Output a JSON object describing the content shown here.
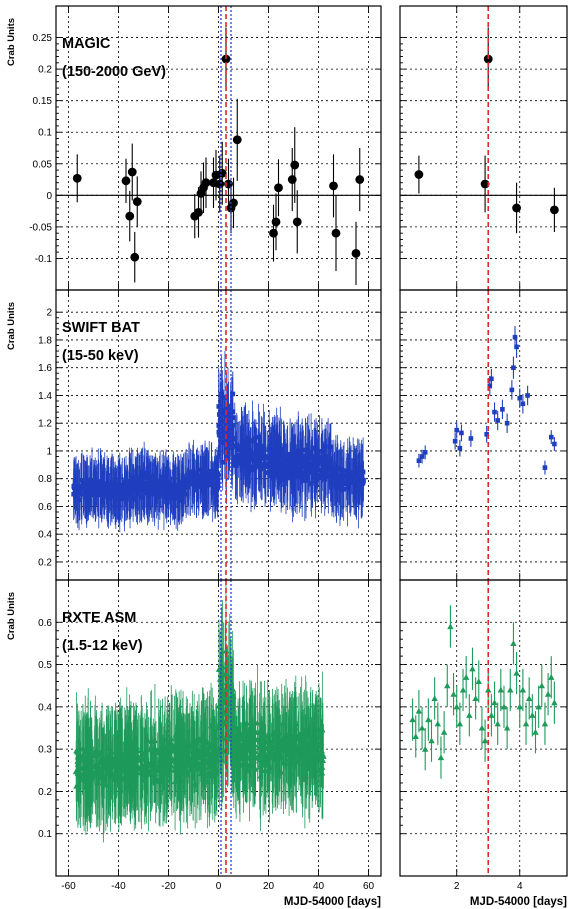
{
  "chart_data": {
    "type": "scatter",
    "x_label_left": "MJD-54000 [days]",
    "x_label_right": "MJD-54000 [days]",
    "xlim_left": [
      -65,
      65
    ],
    "xlim_right": [
      0.2,
      5.5
    ],
    "x_ticks_left": [
      -60,
      -40,
      -20,
      0,
      20,
      40,
      60
    ],
    "x_ticks_right": [
      2,
      4
    ],
    "vlines": {
      "red_left": [
        3
      ],
      "blue_left": [
        1,
        5
      ],
      "red_right": [
        3
      ],
      "red_color": "#e8232a",
      "blue_color": "#2a3fe0"
    },
    "panels": [
      {
        "name": "MAGIC",
        "range_label": "(150-2000 GeV)",
        "ylabel": "Crab Units",
        "ylim": [
          -0.15,
          0.3
        ],
        "yticks": [
          -0.1,
          -0.05,
          0,
          0.05,
          0.1,
          0.15,
          0.2,
          0.25
        ],
        "ytick_labels": [
          "-0.1",
          "-0.05",
          "0",
          "0.05",
          "0.1",
          "0.15",
          "0.2",
          "0.25"
        ],
        "marker": "circle",
        "color": "#000000",
        "points_left": [
          [
            -56.5,
            0.027,
            0.038
          ],
          [
            -37,
            0.023,
            0.035
          ],
          [
            -35.5,
            -0.033,
            0.04
          ],
          [
            -34.5,
            0.037,
            0.045
          ],
          [
            -33.5,
            -0.098,
            0.04
          ],
          [
            -32.5,
            -0.01,
            0.04
          ],
          [
            -9.5,
            -0.033,
            0.035
          ],
          [
            -8,
            -0.027,
            0.04
          ],
          [
            -7,
            0.003,
            0.035
          ],
          [
            -6,
            0.012,
            0.04
          ],
          [
            -5,
            0.02,
            0.04
          ],
          [
            -2,
            0.02,
            0.04
          ],
          [
            -1,
            0.032,
            0.04
          ],
          [
            0.5,
            0.018,
            0.045
          ],
          [
            1.5,
            0.035,
            0.05
          ],
          [
            3,
            0.216,
            0.05
          ],
          [
            4,
            0.018,
            0.04
          ],
          [
            5,
            -0.02,
            0.04
          ],
          [
            6,
            -0.012,
            0.04
          ],
          [
            7.5,
            0.088,
            0.065
          ],
          [
            22,
            -0.06,
            0.045
          ],
          [
            23,
            -0.042,
            0.045
          ],
          [
            24,
            0.012,
            0.045
          ],
          [
            29.5,
            0.025,
            0.05
          ],
          [
            30.5,
            0.048,
            0.06
          ],
          [
            31.5,
            -0.042,
            0.05
          ],
          [
            46,
            0.015,
            0.05
          ],
          [
            47,
            -0.06,
            0.06
          ],
          [
            55,
            -0.092,
            0.05
          ],
          [
            56.5,
            0.025,
            0.05
          ]
        ],
        "points_right": [
          [
            0.8,
            0.033,
            0.03
          ],
          [
            2.9,
            0.018,
            0.045
          ],
          [
            3,
            0.216,
            0.05
          ],
          [
            3.9,
            -0.02,
            0.04
          ],
          [
            5.1,
            -0.023,
            0.035
          ]
        ]
      },
      {
        "name": "SWIFT BAT",
        "range_label": "(15-50 keV)",
        "ylabel": "Crab Units",
        "ylim": [
          0.07,
          2.16
        ],
        "yticks": [
          0.2,
          0.4,
          0.6,
          0.8,
          1,
          1.2,
          1.4,
          1.6,
          1.8,
          2
        ],
        "ytick_labels": [
          "0.2",
          "0.4",
          "0.6",
          "0.8",
          "1",
          "1.2",
          "1.4",
          "1.6",
          "1.8",
          "2"
        ],
        "marker": "square",
        "color": "#1f3fbf",
        "dense_left": [
          [
            -58,
            -35,
            0.72,
            0.06,
            0.18
          ],
          [
            -35,
            -20,
            0.75,
            0.07,
            0.18
          ],
          [
            -20,
            -13,
            0.72,
            0.06,
            0.18
          ],
          [
            -13,
            0,
            0.78,
            0.06,
            0.18
          ],
          [
            0,
            6,
            1.15,
            0.22,
            0.25
          ],
          [
            6,
            25,
            0.96,
            0.1,
            0.22
          ],
          [
            25,
            45,
            0.9,
            0.1,
            0.22
          ],
          [
            45,
            58,
            0.8,
            0.08,
            0.2
          ]
        ],
        "points_right": [
          [
            0.8,
            0.93,
            0.05
          ],
          [
            0.9,
            0.96,
            0.05
          ],
          [
            1.0,
            0.99,
            0.05
          ],
          [
            1.95,
            1.07,
            0.06
          ],
          [
            2.0,
            1.15,
            0.06
          ],
          [
            2.1,
            1.02,
            0.06
          ],
          [
            2.15,
            1.13,
            0.06
          ],
          [
            2.45,
            1.09,
            0.06
          ],
          [
            2.95,
            1.12,
            0.06
          ],
          [
            3.05,
            1.47,
            0.07
          ],
          [
            3.1,
            1.52,
            0.07
          ],
          [
            3.2,
            1.28,
            0.07
          ],
          [
            3.3,
            1.22,
            0.07
          ],
          [
            3.45,
            1.3,
            0.07
          ],
          [
            3.6,
            1.2,
            0.07
          ],
          [
            3.75,
            1.44,
            0.07
          ],
          [
            3.8,
            1.6,
            0.08
          ],
          [
            3.85,
            1.82,
            0.08
          ],
          [
            3.9,
            1.75,
            0.08
          ],
          [
            4.0,
            1.38,
            0.07
          ],
          [
            4.1,
            1.34,
            0.07
          ],
          [
            4.25,
            1.4,
            0.07
          ],
          [
            4.8,
            0.88,
            0.05
          ],
          [
            5.0,
            1.1,
            0.05
          ],
          [
            5.1,
            1.05,
            0.05
          ]
        ]
      },
      {
        "name": "RXTE ASM",
        "range_label": "(1.5-12 keV)",
        "ylabel": "Crab Units",
        "ylim": [
          0,
          0.7
        ],
        "yticks": [
          0.1,
          0.2,
          0.3,
          0.4,
          0.5,
          0.6
        ],
        "ytick_labels": [
          "0.1",
          "0.2",
          "0.3",
          "0.4",
          "0.5",
          "0.6"
        ],
        "marker": "triangle",
        "color": "#1e9a5a",
        "dense_left": [
          [
            -57,
            -40,
            0.26,
            0.04,
            0.1
          ],
          [
            -40,
            -20,
            0.27,
            0.04,
            0.1
          ],
          [
            -20,
            0,
            0.28,
            0.05,
            0.1
          ],
          [
            0,
            6,
            0.4,
            0.1,
            0.12
          ],
          [
            6,
            20,
            0.3,
            0.05,
            0.1
          ],
          [
            20,
            42,
            0.3,
            0.05,
            0.1
          ]
        ],
        "points_right": [
          [
            0.6,
            0.37,
            0.05
          ],
          [
            0.7,
            0.33,
            0.05
          ],
          [
            0.8,
            0.39,
            0.05
          ],
          [
            0.9,
            0.35,
            0.05
          ],
          [
            1.0,
            0.3,
            0.05
          ],
          [
            1.1,
            0.37,
            0.05
          ],
          [
            1.2,
            0.32,
            0.05
          ],
          [
            1.3,
            0.42,
            0.05
          ],
          [
            1.4,
            0.36,
            0.05
          ],
          [
            1.5,
            0.28,
            0.05
          ],
          [
            1.6,
            0.34,
            0.05
          ],
          [
            1.7,
            0.45,
            0.05
          ],
          [
            1.8,
            0.59,
            0.05
          ],
          [
            1.9,
            0.43,
            0.05
          ],
          [
            2.0,
            0.4,
            0.05
          ],
          [
            2.1,
            0.36,
            0.05
          ],
          [
            2.2,
            0.44,
            0.05
          ],
          [
            2.3,
            0.47,
            0.05
          ],
          [
            2.4,
            0.38,
            0.05
          ],
          [
            2.5,
            0.49,
            0.05
          ],
          [
            2.6,
            0.42,
            0.05
          ],
          [
            2.7,
            0.46,
            0.05
          ],
          [
            2.8,
            0.35,
            0.05
          ],
          [
            2.9,
            0.32,
            0.05
          ],
          [
            3.0,
            0.44,
            0.05
          ],
          [
            3.1,
            0.38,
            0.05
          ],
          [
            3.2,
            0.41,
            0.05
          ],
          [
            3.3,
            0.36,
            0.05
          ],
          [
            3.4,
            0.44,
            0.05
          ],
          [
            3.5,
            0.4,
            0.05
          ],
          [
            3.6,
            0.35,
            0.05
          ],
          [
            3.7,
            0.44,
            0.05
          ],
          [
            3.8,
            0.55,
            0.05
          ],
          [
            3.9,
            0.48,
            0.05
          ],
          [
            4.0,
            0.4,
            0.05
          ],
          [
            4.1,
            0.44,
            0.05
          ],
          [
            4.2,
            0.36,
            0.05
          ],
          [
            4.3,
            0.42,
            0.05
          ],
          [
            4.4,
            0.38,
            0.05
          ],
          [
            4.5,
            0.34,
            0.05
          ],
          [
            4.6,
            0.4,
            0.05
          ],
          [
            4.7,
            0.45,
            0.05
          ],
          [
            4.8,
            0.36,
            0.05
          ],
          [
            4.9,
            0.43,
            0.05
          ],
          [
            5.0,
            0.47,
            0.05
          ],
          [
            5.1,
            0.41,
            0.05
          ]
        ]
      }
    ]
  }
}
